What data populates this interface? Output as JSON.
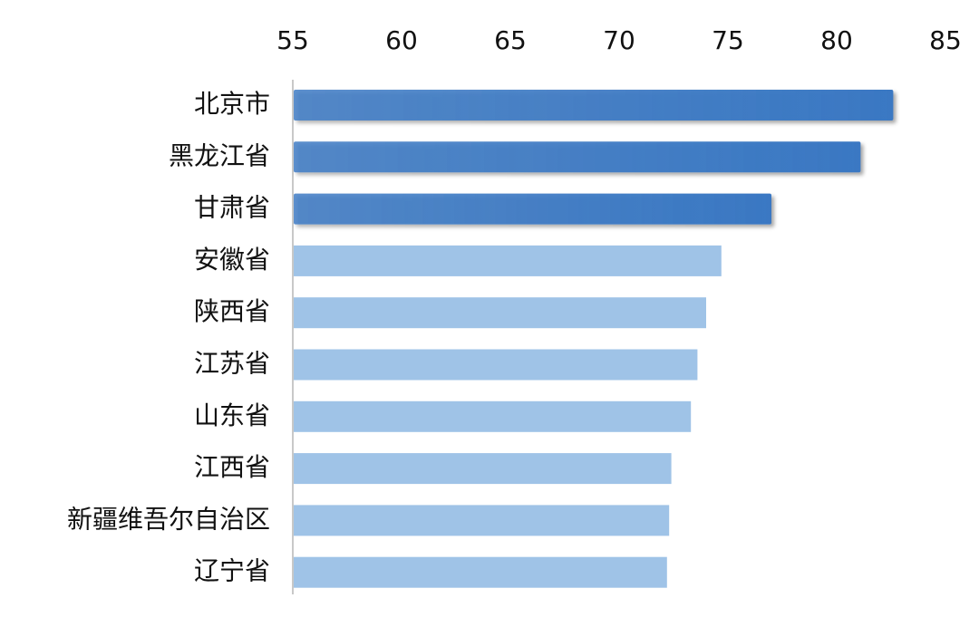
{
  "chart_data": {
    "type": "barh",
    "categories": [
      "北京市",
      "黑龙江省",
      "甘肃省",
      "安徽省",
      "陕西省",
      "江苏省",
      "山东省",
      "江西省",
      "新疆维吾尔自治区",
      "辽宁省"
    ],
    "values": [
      82.6,
      81.1,
      77.0,
      74.7,
      74.0,
      73.6,
      73.3,
      72.4,
      72.3,
      72.2
    ],
    "colors": [
      "#3a78c3",
      "#3a78c3",
      "#3a78c3",
      "#9fc3e7",
      "#9fc3e7",
      "#9fc3e7",
      "#9fc3e7",
      "#9fc3e7",
      "#9fc3e7",
      "#9fc3e7"
    ],
    "xlim": [
      55,
      85
    ],
    "xticks": [
      55,
      60,
      65,
      70,
      75,
      80,
      85
    ]
  }
}
